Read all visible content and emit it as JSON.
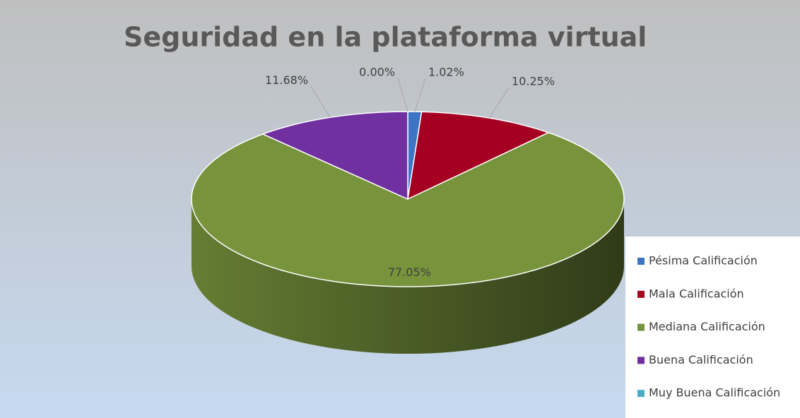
{
  "chart_data": {
    "type": "pie",
    "title": "Seguridad en la plataforma virtual",
    "categories": [
      "Pésima Calificación",
      "Mala Calificación",
      "Mediana Calificación",
      "Buena Calificación",
      "Muy Buena Calificación"
    ],
    "values": [
      1.02,
      10.25,
      77.05,
      11.68,
      0
    ],
    "value_labels": [
      "1.02%",
      "10.25%",
      "77.05%",
      "11.68%",
      "0.00%"
    ],
    "colors": [
      "#3f74c4",
      "#a50021",
      "#77933c",
      "#7030a0",
      "#4bacc6"
    ],
    "legend": "right"
  }
}
